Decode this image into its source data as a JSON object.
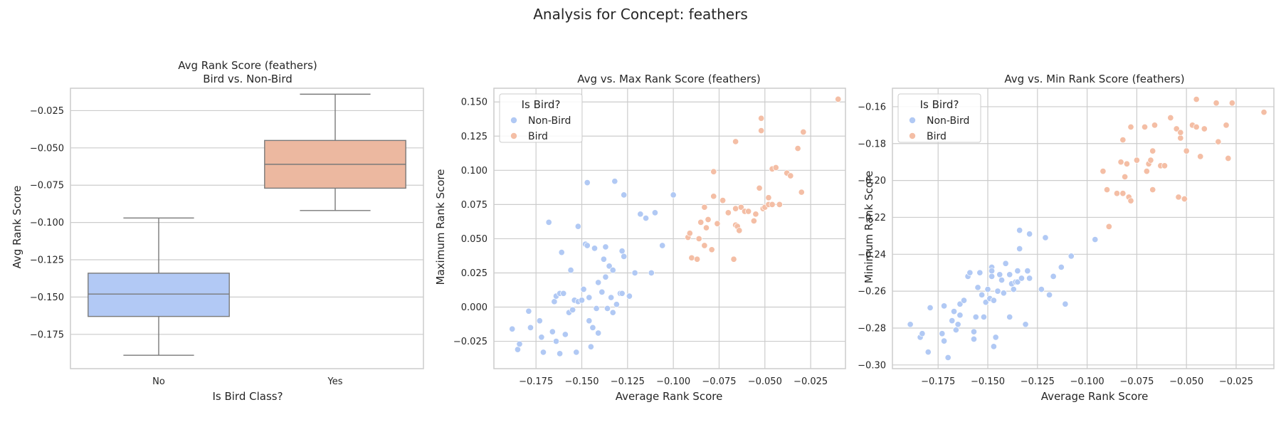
{
  "figure": {
    "suptitle": "Analysis for Concept: feathers"
  },
  "colors": {
    "non_bird": "#b1c9f4",
    "bird": "#f4bea5",
    "box_non_bird": "#b2c9f5",
    "box_bird": "#ecb8a0",
    "median_line": "#7a7a7a",
    "grid": "#cccccc"
  },
  "chart_data": [
    {
      "type": "box",
      "title_lines": [
        "Avg Rank Score (feathers)",
        "Bird vs. Non-Bird"
      ],
      "xlabel": "Is Bird Class?",
      "ylabel": "Avg Rank Score",
      "categories": [
        "No",
        "Yes"
      ],
      "ylim": [
        -0.198,
        -0.01
      ],
      "yticks": [
        -0.175,
        -0.15,
        -0.125,
        -0.1,
        -0.075,
        -0.05,
        -0.025
      ],
      "ytick_labels": [
        "−0.175",
        "−0.150",
        "−0.125",
        "−0.100",
        "−0.075",
        "−0.050",
        "−0.025"
      ],
      "boxes": [
        {
          "category": "No",
          "whisker_low": -0.189,
          "q1": -0.163,
          "median": -0.148,
          "q3": -0.134,
          "whisker_high": -0.097
        },
        {
          "category": "Yes",
          "whisker_low": -0.092,
          "q1": -0.077,
          "median": -0.061,
          "q3": -0.045,
          "whisker_high": -0.014
        }
      ],
      "grid": true
    },
    {
      "type": "scatter",
      "title": "Avg vs. Max Rank Score (feathers)",
      "xlabel": "Average Rank Score",
      "ylabel": "Maximum Rank Score",
      "xlim": [
        -0.198,
        -0.006
      ],
      "ylim": [
        -0.045,
        0.16
      ],
      "xticks": [
        -0.175,
        -0.15,
        -0.125,
        -0.1,
        -0.075,
        -0.05,
        -0.025
      ],
      "xtick_labels": [
        "−0.175",
        "−0.150",
        "−0.125",
        "−0.100",
        "−0.075",
        "−0.050",
        "−0.025"
      ],
      "yticks": [
        -0.025,
        0,
        0.025,
        0.05,
        0.075,
        0.1,
        0.125,
        0.15
      ],
      "ytick_labels": [
        "−0.025",
        "0.000",
        "0.025",
        "0.050",
        "0.075",
        "0.100",
        "0.125",
        "0.150"
      ],
      "legend": {
        "title": "Is Bird?",
        "entries": [
          "Non-Bird",
          "Bird"
        ],
        "placement": "upper-left"
      },
      "grid": true,
      "series": [
        {
          "name": "Non-Bird",
          "points": [
            [
              -0.188,
              -0.016
            ],
            [
              -0.185,
              -0.031
            ],
            [
              -0.184,
              -0.027
            ],
            [
              -0.179,
              -0.003
            ],
            [
              -0.178,
              -0.015
            ],
            [
              -0.173,
              -0.01
            ],
            [
              -0.172,
              -0.022
            ],
            [
              -0.171,
              -0.033
            ],
            [
              -0.168,
              0.062
            ],
            [
              -0.166,
              -0.018
            ],
            [
              -0.165,
              0.004
            ],
            [
              -0.164,
              -0.025
            ],
            [
              -0.164,
              0.008
            ],
            [
              -0.162,
              0.01
            ],
            [
              -0.162,
              -0.034
            ],
            [
              -0.161,
              0.04
            ],
            [
              -0.16,
              0.01
            ],
            [
              -0.159,
              -0.02
            ],
            [
              -0.157,
              -0.004
            ],
            [
              -0.156,
              0.027
            ],
            [
              -0.155,
              -0.002
            ],
            [
              -0.154,
              0.005
            ],
            [
              -0.153,
              -0.033
            ],
            [
              -0.152,
              0.059
            ],
            [
              -0.152,
              0.004
            ],
            [
              -0.15,
              0.005
            ],
            [
              -0.149,
              0.013
            ],
            [
              -0.148,
              0.046
            ],
            [
              -0.147,
              0.091
            ],
            [
              -0.147,
              0.045
            ],
            [
              -0.146,
              0.007
            ],
            [
              -0.146,
              -0.01
            ],
            [
              -0.145,
              -0.029
            ],
            [
              -0.144,
              -0.015
            ],
            [
              -0.143,
              0.043
            ],
            [
              -0.142,
              -0.001
            ],
            [
              -0.141,
              0.018
            ],
            [
              -0.141,
              -0.019
            ],
            [
              -0.139,
              0.011
            ],
            [
              -0.138,
              0.035
            ],
            [
              -0.137,
              0.022
            ],
            [
              -0.137,
              0.044
            ],
            [
              -0.136,
              -0.001
            ],
            [
              -0.135,
              0.03
            ],
            [
              -0.134,
              0.007
            ],
            [
              -0.133,
              -0.004
            ],
            [
              -0.133,
              0.027
            ],
            [
              -0.132,
              0.092
            ],
            [
              -0.131,
              0.002
            ],
            [
              -0.129,
              0.01
            ],
            [
              -0.128,
              0.01
            ],
            [
              -0.128,
              0.041
            ],
            [
              -0.127,
              0.037
            ],
            [
              -0.127,
              0.082
            ],
            [
              -0.124,
              0.008
            ],
            [
              -0.121,
              0.025
            ],
            [
              -0.118,
              0.068
            ],
            [
              -0.115,
              0.065
            ],
            [
              -0.112,
              0.025
            ],
            [
              -0.11,
              0.069
            ],
            [
              -0.106,
              0.045
            ],
            [
              -0.1,
              0.082
            ]
          ]
        },
        {
          "name": "Bird",
          "points": [
            [
              -0.092,
              0.051
            ],
            [
              -0.091,
              0.054
            ],
            [
              -0.09,
              0.036
            ],
            [
              -0.087,
              0.035
            ],
            [
              -0.086,
              0.05
            ],
            [
              -0.085,
              0.062
            ],
            [
              -0.083,
              0.045
            ],
            [
              -0.083,
              0.073
            ],
            [
              -0.082,
              0.058
            ],
            [
              -0.081,
              0.064
            ],
            [
              -0.079,
              0.042
            ],
            [
              -0.078,
              0.081
            ],
            [
              -0.078,
              0.099
            ],
            [
              -0.076,
              0.061
            ],
            [
              -0.073,
              0.078
            ],
            [
              -0.07,
              0.069
            ],
            [
              -0.067,
              0.035
            ],
            [
              -0.066,
              0.121
            ],
            [
              -0.066,
              0.06
            ],
            [
              -0.066,
              0.072
            ],
            [
              -0.065,
              0.059
            ],
            [
              -0.064,
              0.056
            ],
            [
              -0.063,
              0.073
            ],
            [
              -0.061,
              0.07
            ],
            [
              -0.059,
              0.07
            ],
            [
              -0.056,
              0.063
            ],
            [
              -0.055,
              0.068
            ],
            [
              -0.053,
              0.087
            ],
            [
              -0.052,
              0.129
            ],
            [
              -0.052,
              0.138
            ],
            [
              -0.051,
              0.072
            ],
            [
              -0.05,
              0.073
            ],
            [
              -0.048,
              0.075
            ],
            [
              -0.048,
              0.08
            ],
            [
              -0.046,
              0.101
            ],
            [
              -0.046,
              0.075
            ],
            [
              -0.044,
              0.102
            ],
            [
              -0.042,
              0.075
            ],
            [
              -0.038,
              0.098
            ],
            [
              -0.036,
              0.096
            ],
            [
              -0.032,
              0.116
            ],
            [
              -0.03,
              0.084
            ],
            [
              -0.029,
              0.128
            ],
            [
              -0.01,
              0.152
            ]
          ]
        }
      ]
    },
    {
      "type": "scatter",
      "title": "Avg vs. Min Rank Score (feathers)",
      "xlabel": "Average Rank Score",
      "ylabel": "Minimum Rank Score",
      "xlim": [
        -0.198,
        -0.006
      ],
      "ylim": [
        -0.302,
        -0.15
      ],
      "xticks": [
        -0.175,
        -0.15,
        -0.125,
        -0.1,
        -0.075,
        -0.05,
        -0.025
      ],
      "xtick_labels": [
        "−0.175",
        "−0.150",
        "−0.125",
        "−0.100",
        "−0.075",
        "−0.050",
        "−0.025"
      ],
      "yticks": [
        -0.3,
        -0.28,
        -0.26,
        -0.24,
        -0.22,
        -0.2,
        -0.18,
        -0.16
      ],
      "ytick_labels": [
        "−0.30",
        "−0.28",
        "−0.26",
        "−0.24",
        "−0.22",
        "−0.20",
        "−0.18",
        "−0.16"
      ],
      "legend": {
        "title": "Is Bird?",
        "entries": [
          "Non-Bird",
          "Bird"
        ],
        "placement": "upper-left"
      },
      "grid": true,
      "series": [
        {
          "name": "Non-Bird",
          "points": [
            [
              -0.189,
              -0.278
            ],
            [
              -0.184,
              -0.285
            ],
            [
              -0.183,
              -0.283
            ],
            [
              -0.18,
              -0.293
            ],
            [
              -0.179,
              -0.269
            ],
            [
              -0.173,
              -0.283
            ],
            [
              -0.172,
              -0.287
            ],
            [
              -0.172,
              -0.268
            ],
            [
              -0.17,
              -0.296
            ],
            [
              -0.168,
              -0.276
            ],
            [
              -0.167,
              -0.271
            ],
            [
              -0.166,
              -0.281
            ],
            [
              -0.165,
              -0.278
            ],
            [
              -0.164,
              -0.273
            ],
            [
              -0.164,
              -0.267
            ],
            [
              -0.162,
              -0.265
            ],
            [
              -0.16,
              -0.252
            ],
            [
              -0.159,
              -0.25
            ],
            [
              -0.157,
              -0.282
            ],
            [
              -0.157,
              -0.286
            ],
            [
              -0.156,
              -0.274
            ],
            [
              -0.155,
              -0.258
            ],
            [
              -0.154,
              -0.25
            ],
            [
              -0.153,
              -0.262
            ],
            [
              -0.152,
              -0.274
            ],
            [
              -0.151,
              -0.266
            ],
            [
              -0.15,
              -0.259
            ],
            [
              -0.149,
              -0.264
            ],
            [
              -0.148,
              -0.247
            ],
            [
              -0.148,
              -0.252
            ],
            [
              -0.148,
              -0.249
            ],
            [
              -0.147,
              -0.29
            ],
            [
              -0.147,
              -0.265
            ],
            [
              -0.146,
              -0.285
            ],
            [
              -0.145,
              -0.26
            ],
            [
              -0.144,
              -0.251
            ],
            [
              -0.143,
              -0.254
            ],
            [
              -0.142,
              -0.261
            ],
            [
              -0.141,
              -0.245
            ],
            [
              -0.139,
              -0.274
            ],
            [
              -0.139,
              -0.251
            ],
            [
              -0.138,
              -0.256
            ],
            [
              -0.137,
              -0.259
            ],
            [
              -0.136,
              -0.255
            ],
            [
              -0.135,
              -0.249
            ],
            [
              -0.135,
              -0.255
            ],
            [
              -0.134,
              -0.237
            ],
            [
              -0.134,
              -0.227
            ],
            [
              -0.133,
              -0.253
            ],
            [
              -0.131,
              -0.278
            ],
            [
              -0.13,
              -0.249
            ],
            [
              -0.129,
              -0.253
            ],
            [
              -0.129,
              -0.229
            ],
            [
              -0.129,
              -0.229
            ],
            [
              -0.123,
              -0.259
            ],
            [
              -0.121,
              -0.231
            ],
            [
              -0.119,
              -0.262
            ],
            [
              -0.117,
              -0.252
            ],
            [
              -0.113,
              -0.247
            ],
            [
              -0.111,
              -0.267
            ],
            [
              -0.108,
              -0.241
            ],
            [
              -0.096,
              -0.232
            ]
          ]
        },
        {
          "name": "Bird",
          "points": [
            [
              -0.092,
              -0.195
            ],
            [
              -0.09,
              -0.205
            ],
            [
              -0.089,
              -0.225
            ],
            [
              -0.085,
              -0.207
            ],
            [
              -0.083,
              -0.19
            ],
            [
              -0.082,
              -0.178
            ],
            [
              -0.082,
              -0.207
            ],
            [
              -0.081,
              -0.198
            ],
            [
              -0.08,
              -0.191
            ],
            [
              -0.079,
              -0.209
            ],
            [
              -0.078,
              -0.211
            ],
            [
              -0.078,
              -0.171
            ],
            [
              -0.075,
              -0.189
            ],
            [
              -0.071,
              -0.171
            ],
            [
              -0.07,
              -0.195
            ],
            [
              -0.069,
              -0.191
            ],
            [
              -0.068,
              -0.189
            ],
            [
              -0.067,
              -0.205
            ],
            [
              -0.067,
              -0.184
            ],
            [
              -0.066,
              -0.17
            ],
            [
              -0.063,
              -0.192
            ],
            [
              -0.061,
              -0.192
            ],
            [
              -0.058,
              -0.166
            ],
            [
              -0.055,
              -0.172
            ],
            [
              -0.054,
              -0.209
            ],
            [
              -0.053,
              -0.177
            ],
            [
              -0.053,
              -0.174
            ],
            [
              -0.051,
              -0.21
            ],
            [
              -0.05,
              -0.184
            ],
            [
              -0.047,
              -0.17
            ],
            [
              -0.045,
              -0.156
            ],
            [
              -0.045,
              -0.171
            ],
            [
              -0.043,
              -0.187
            ],
            [
              -0.041,
              -0.172
            ],
            [
              -0.035,
              -0.158
            ],
            [
              -0.034,
              -0.179
            ],
            [
              -0.03,
              -0.17
            ],
            [
              -0.029,
              -0.188
            ],
            [
              -0.027,
              -0.158
            ],
            [
              -0.011,
              -0.163
            ]
          ]
        }
      ]
    }
  ]
}
